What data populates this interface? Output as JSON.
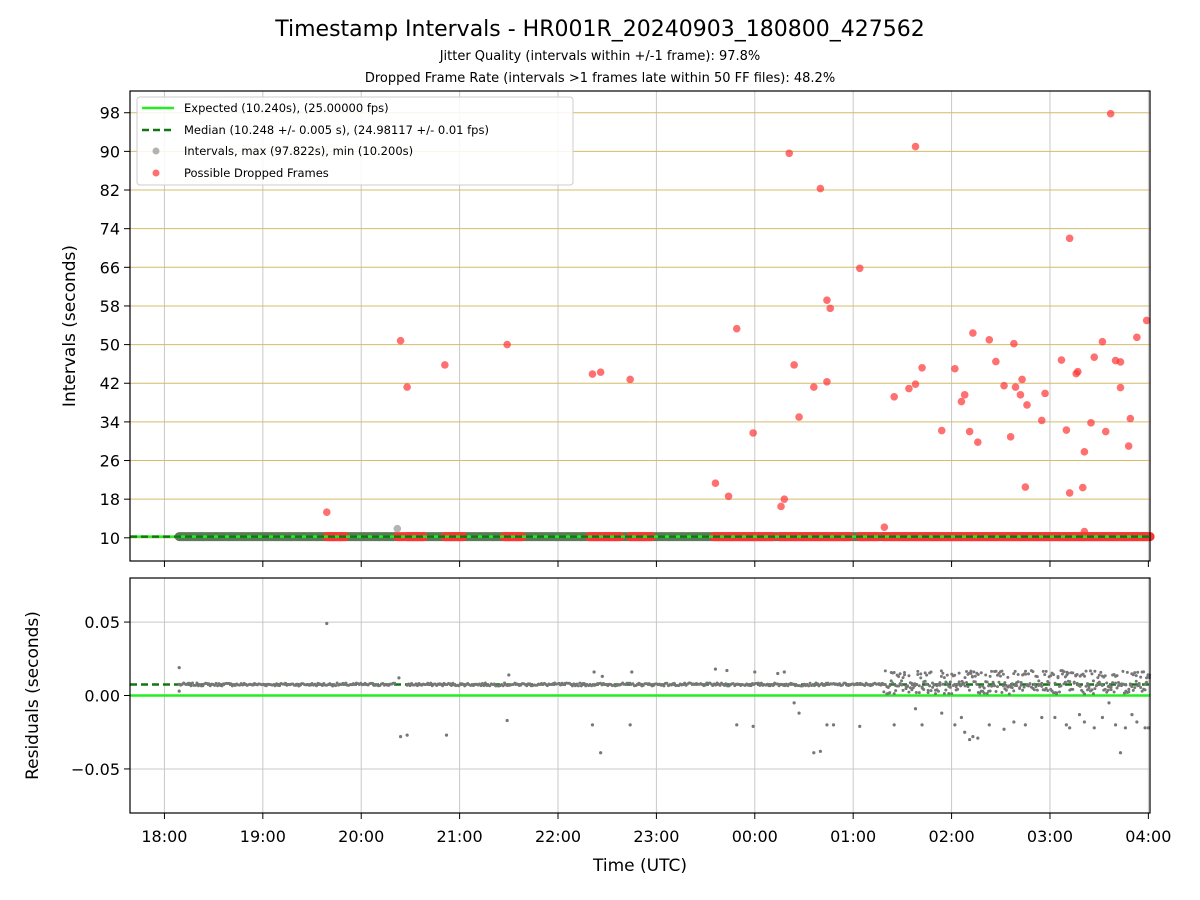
{
  "figure": {
    "title": "Timestamp Intervals - HR001R_20240903_180800_427562",
    "subtitle_1": "Jitter Quality (intervals within +/-1 frame): 97.8%",
    "subtitle_2": "Dropped Frame Rate (intervals >1 frames late within 50 FF files): 48.2%"
  },
  "colors": {
    "expected": "#22ee22",
    "median": "#117711",
    "intervals": "#777777",
    "dropped": "#ff3333",
    "hgrid_top": "#d4bc6a",
    "grid": "#c8c8c8"
  },
  "chart_data": [
    {
      "type": "scatter",
      "ylabel": "Intervals (seconds)",
      "xlabel": "",
      "xlim": [
        "17:39",
        "04:01"
      ],
      "ylim": [
        5.2,
        102.5
      ],
      "yticks": [
        10,
        18,
        26,
        34,
        42,
        50,
        58,
        66,
        74,
        82,
        90,
        98
      ],
      "grid": true,
      "legend": {
        "placement": "top-left",
        "entries": [
          "Expected (10.240s), (25.00000 fps)",
          "Median (10.248 +/- 0.005 s), (24.98117 +/- 0.01 fps)",
          "Intervals, max (97.822s), min (10.200s)",
          "Possible Dropped Frames"
        ]
      },
      "expected_line": 10.24,
      "median_line": 10.248,
      "intervals_points": [
        [
          "20:22",
          11.9
        ]
      ],
      "normal_bands": [
        [
          "18:09",
          "20:21"
        ],
        [
          "20:28",
          "04:01"
        ]
      ],
      "dropped_bands": [
        [
          "19:39",
          "19:50"
        ],
        [
          "20:22",
          "20:38"
        ],
        [
          "20:51",
          "21:02"
        ],
        [
          "21:27",
          "21:38"
        ],
        [
          "22:19",
          "22:38"
        ],
        [
          "22:44",
          "22:57"
        ],
        [
          "23:35",
          "00:11"
        ],
        [
          "00:15",
          "00:58"
        ],
        [
          "01:04",
          "01:15"
        ],
        [
          "01:18",
          "04:01"
        ]
      ],
      "dropped_points": [
        [
          "19:39",
          15.3
        ],
        [
          "20:24",
          50.8
        ],
        [
          "20:28",
          41.2
        ],
        [
          "20:51",
          45.8
        ],
        [
          "21:29",
          50.0
        ],
        [
          "22:21",
          43.9
        ],
        [
          "22:26",
          44.3
        ],
        [
          "22:44",
          42.8
        ],
        [
          "23:36",
          21.3
        ],
        [
          "23:44",
          18.6
        ],
        [
          "23:49",
          53.3
        ],
        [
          "23:59",
          31.7
        ],
        [
          "00:16",
          16.5
        ],
        [
          "00:18",
          18.0
        ],
        [
          "00:21",
          89.6
        ],
        [
          "00:24",
          45.8
        ],
        [
          "00:27",
          35.0
        ],
        [
          "00:36",
          41.2
        ],
        [
          "00:40",
          82.3
        ],
        [
          "00:44",
          42.3
        ],
        [
          "00:44",
          59.2
        ],
        [
          "00:46",
          57.5
        ],
        [
          "01:04",
          65.8
        ],
        [
          "01:19",
          12.2
        ],
        [
          "01:25",
          39.2
        ],
        [
          "01:34",
          40.9
        ],
        [
          "01:38",
          41.8
        ],
        [
          "01:38",
          91.0
        ],
        [
          "01:42",
          45.2
        ],
        [
          "01:54",
          32.2
        ],
        [
          "02:02",
          45.0
        ],
        [
          "02:06",
          38.2
        ],
        [
          "02:08",
          39.6
        ],
        [
          "02:11",
          32.0
        ],
        [
          "02:13",
          52.4
        ],
        [
          "02:16",
          29.8
        ],
        [
          "02:23",
          51.0
        ],
        [
          "02:27",
          46.5
        ],
        [
          "02:32",
          41.5
        ],
        [
          "02:36",
          30.9
        ],
        [
          "02:38",
          50.2
        ],
        [
          "02:39",
          41.2
        ],
        [
          "02:42",
          39.6
        ],
        [
          "02:43",
          42.8
        ],
        [
          "02:45",
          20.5
        ],
        [
          "02:46",
          37.5
        ],
        [
          "02:55",
          34.3
        ],
        [
          "02:57",
          39.9
        ],
        [
          "03:07",
          46.8
        ],
        [
          "03:10",
          32.3
        ],
        [
          "03:12",
          19.3
        ],
        [
          "03:12",
          72.0
        ],
        [
          "03:16",
          44.0
        ],
        [
          "03:17",
          44.4
        ],
        [
          "03:20",
          20.4
        ],
        [
          "03:21",
          27.8
        ],
        [
          "03:21",
          11.3
        ],
        [
          "03:25",
          33.8
        ],
        [
          "03:27",
          47.4
        ],
        [
          "03:32",
          50.6
        ],
        [
          "03:34",
          32.0
        ],
        [
          "03:37",
          97.8
        ],
        [
          "03:40",
          46.7
        ],
        [
          "03:43",
          46.4
        ],
        [
          "03:43",
          41.1
        ],
        [
          "03:48",
          29.0
        ],
        [
          "03:49",
          34.7
        ],
        [
          "03:53",
          51.5
        ],
        [
          "03:59",
          55.0
        ]
      ]
    },
    {
      "type": "scatter",
      "ylabel": "Residuals (seconds)",
      "xlabel": "Time (UTC)",
      "xlim": [
        "17:39",
        "04:01"
      ],
      "ylim": [
        -0.08,
        0.08
      ],
      "yticks": [
        0.05,
        0.0,
        -0.05
      ],
      "ytick_labels": [
        "0.05",
        "0.00",
        "−0.05"
      ],
      "xticks": [
        "18:00",
        "19:00",
        "20:00",
        "21:00",
        "22:00",
        "23:00",
        "00:00",
        "01:00",
        "02:00",
        "03:00",
        "04:00"
      ],
      "grid": true,
      "zero_line": 0.0,
      "median_residual": 0.0075,
      "outlier_points": [
        [
          "18:09",
          0.019
        ],
        [
          "18:09",
          0.003
        ],
        [
          "19:39",
          0.049
        ],
        [
          "20:24",
          -0.028
        ],
        [
          "20:28",
          -0.027
        ],
        [
          "20:52",
          -0.027
        ],
        [
          "21:29",
          -0.017
        ],
        [
          "22:21",
          -0.02
        ],
        [
          "22:26",
          -0.039
        ],
        [
          "22:44",
          -0.02
        ],
        [
          "23:49",
          -0.02
        ],
        [
          "23:59",
          -0.021
        ],
        [
          "00:24",
          -0.005
        ],
        [
          "00:27",
          -0.012
        ],
        [
          "00:36",
          -0.039
        ],
        [
          "00:40",
          -0.038
        ],
        [
          "00:44",
          -0.02
        ],
        [
          "00:48",
          -0.02
        ],
        [
          "01:04",
          -0.021
        ],
        [
          "01:25",
          -0.02
        ],
        [
          "01:38",
          -0.009
        ],
        [
          "01:42",
          -0.02
        ],
        [
          "01:54",
          -0.012
        ],
        [
          "02:02",
          -0.02
        ],
        [
          "02:06",
          -0.015
        ],
        [
          "02:08",
          -0.025
        ],
        [
          "02:11",
          -0.03
        ],
        [
          "02:13",
          -0.028
        ],
        [
          "02:16",
          -0.029
        ],
        [
          "02:23",
          -0.02
        ],
        [
          "02:32",
          -0.023
        ],
        [
          "02:38",
          -0.018
        ],
        [
          "02:45",
          -0.02
        ],
        [
          "02:55",
          -0.015
        ],
        [
          "03:03",
          -0.015
        ],
        [
          "03:10",
          -0.02
        ],
        [
          "03:12",
          -0.022
        ],
        [
          "03:18",
          -0.013
        ],
        [
          "03:21",
          -0.018
        ],
        [
          "03:27",
          -0.022
        ],
        [
          "03:32",
          -0.015
        ],
        [
          "03:36",
          -0.005
        ],
        [
          "03:40",
          -0.02
        ],
        [
          "03:43",
          -0.039
        ],
        [
          "03:46",
          -0.022
        ],
        [
          "03:50",
          -0.013
        ],
        [
          "03:53",
          -0.018
        ],
        [
          "03:58",
          -0.022
        ],
        [
          "04:00",
          -0.022
        ],
        [
          "23:36",
          0.018
        ],
        [
          "23:43",
          0.017
        ],
        [
          "00:00",
          0.016
        ],
        [
          "00:14",
          0.015
        ],
        [
          "00:18",
          0.016
        ],
        [
          "22:22",
          0.016
        ],
        [
          "22:27",
          0.013
        ],
        [
          "22:45",
          0.016
        ],
        [
          "21:30",
          0.014
        ],
        [
          "20:23",
          0.012
        ]
      ]
    }
  ]
}
